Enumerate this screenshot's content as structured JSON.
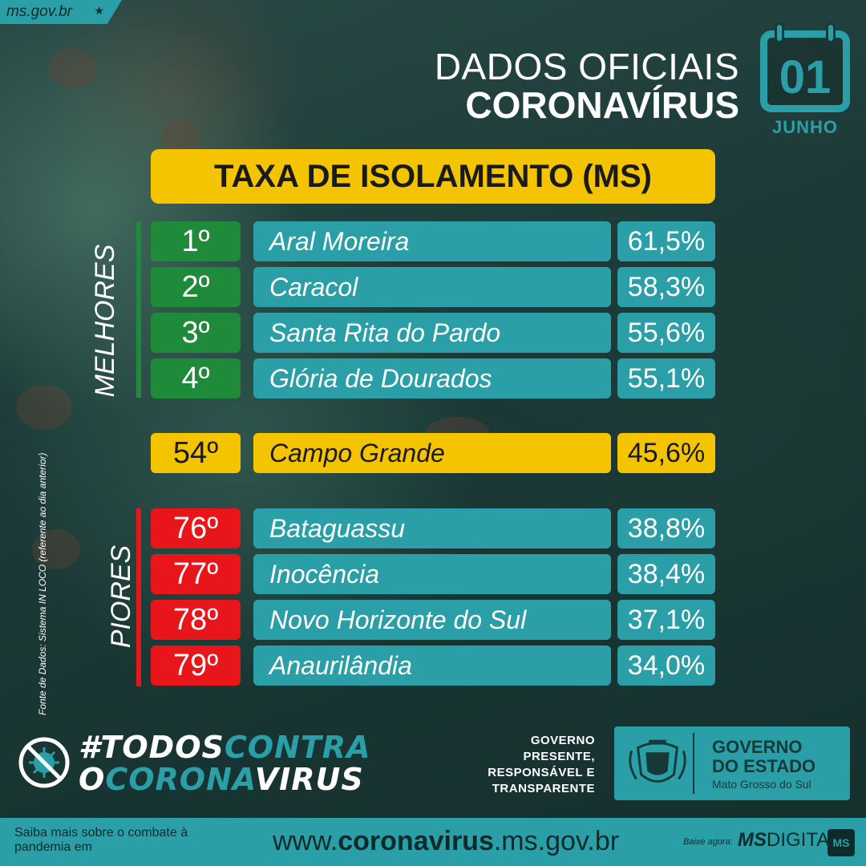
{
  "site_tag": "ms.gov.br",
  "title": {
    "line1": "DADOS OFICIAIS",
    "line2": "CORONAVÍRUS"
  },
  "calendar": {
    "day": "01",
    "month": "JUNHO"
  },
  "header": "TAXA DE ISOLAMENTO (MS)",
  "melhores_label": "MELHORES",
  "piores_label": "PIORES",
  "melhores": [
    {
      "rank": "1º",
      "city": "Aral Moreira",
      "pct": "61,5%"
    },
    {
      "rank": "2º",
      "city": "Caracol",
      "pct": "58,3%"
    },
    {
      "rank": "3º",
      "city": "Santa Rita do Pardo",
      "pct": "55,6%"
    },
    {
      "rank": "4º",
      "city": "Glória de Dourados",
      "pct": "55,1%"
    }
  ],
  "highlight": {
    "rank": "54º",
    "city": "Campo Grande",
    "pct": "45,6%"
  },
  "piores": [
    {
      "rank": "76º",
      "city": "Bataguassu",
      "pct": "38,8%"
    },
    {
      "rank": "77º",
      "city": "Inocência",
      "pct": "38,4%"
    },
    {
      "rank": "78º",
      "city": "Novo Horizonte do Sul",
      "pct": "37,1%"
    },
    {
      "rank": "79º",
      "city": "Anaurilândia",
      "pct": "34,0%"
    }
  ],
  "source_note": "Fonte de Dados: Sistema IN LOCO (referente ao dia anterior)",
  "hashtag": {
    "l1a": "#TODOS",
    "l1b": "CONTRA",
    "l2a": "O",
    "l2b": "CORONA",
    "l2c": "VIRUS"
  },
  "gov_motto": [
    "GOVERNO",
    "PRESENTE,",
    "RESPONSÁVEL E",
    "TRANSPARENTE"
  ],
  "gov_box": {
    "line1": "GOVERNO",
    "line2": "DO ESTADO",
    "line3": "Mato Grosso do Sul"
  },
  "footer": {
    "left": "Saiba mais sobre o combate à pandemia em",
    "url_pre": "www.",
    "url_bold": "coronavirus",
    "url_post": ".ms.gov.br",
    "baixe": "Baixe agora:",
    "app_bold": "MS",
    "app_rest": "DIGITAL",
    "app_logo": "MS"
  },
  "colors": {
    "teal": "#2a9fa7",
    "yellow": "#f4c400",
    "green": "#1f8a3a",
    "red": "#e8151b"
  }
}
